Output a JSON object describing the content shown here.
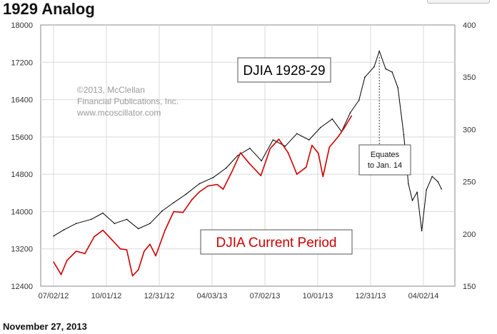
{
  "header": {
    "title": "1929 Analog",
    "date": "November 27, 2013"
  },
  "chart_data": {
    "type": "line",
    "x_ticks": [
      "07/02/12",
      "10/01/12",
      "12/31/12",
      "04/03/13",
      "07/02/13",
      "10/01/13",
      "12/31/13",
      "04/02/14"
    ],
    "left_axis": {
      "min": 12400,
      "max": 18000,
      "ticks": [
        "18000",
        "17200",
        "16400",
        "15600",
        "14800",
        "14000",
        "13200",
        "12400"
      ]
    },
    "right_axis": {
      "min": 150,
      "max": 400,
      "ticks": [
        "400",
        "350",
        "300",
        "250",
        "200",
        "150"
      ]
    },
    "grid": true,
    "series": [
      {
        "name": "DJIA 1928-29",
        "axis": "right",
        "color": "#000000",
        "x": [
          "2012-07-02",
          "2012-07-20",
          "2012-08-10",
          "2012-09-05",
          "2012-09-25",
          "2012-10-15",
          "2012-11-05",
          "2012-11-25",
          "2012-12-15",
          "2013-01-05",
          "2013-01-25",
          "2013-02-15",
          "2013-03-10",
          "2013-04-03",
          "2013-04-25",
          "2013-05-15",
          "2013-06-05",
          "2013-06-25",
          "2013-07-15",
          "2013-08-05",
          "2013-08-25",
          "2013-09-15",
          "2013-10-05",
          "2013-10-25",
          "2013-11-10",
          "2013-11-25",
          "2013-12-10",
          "2013-12-20",
          "2014-01-05",
          "2014-01-14",
          "2014-01-25",
          "2014-02-05",
          "2014-02-15",
          "2014-02-25",
          "2014-03-05",
          "2014-03-12",
          "2014-03-20",
          "2014-03-28",
          "2014-04-05",
          "2014-04-15",
          "2014-04-25",
          "2014-05-01"
        ],
        "values": [
          198,
          204,
          210,
          214,
          220,
          210,
          214,
          205,
          210,
          222,
          230,
          238,
          248,
          254,
          263,
          275,
          282,
          270,
          290,
          284,
          296,
          290,
          302,
          310,
          298,
          316,
          328,
          350,
          360,
          375,
          358,
          355,
          340,
          295,
          248,
          232,
          240,
          203,
          242,
          255,
          250,
          243
        ]
      },
      {
        "name": "DJIA Current Period",
        "axis": "left",
        "color": "#cc0000",
        "x": [
          "2012-07-02",
          "2012-07-15",
          "2012-07-25",
          "2012-08-10",
          "2012-08-25",
          "2012-09-10",
          "2012-09-25",
          "2012-10-10",
          "2012-10-25",
          "2012-11-05",
          "2012-11-15",
          "2012-11-25",
          "2012-12-05",
          "2012-12-15",
          "2012-12-25",
          "2013-01-10",
          "2013-01-25",
          "2013-02-10",
          "2013-02-25",
          "2013-03-10",
          "2013-03-25",
          "2013-04-10",
          "2013-04-20",
          "2013-05-05",
          "2013-05-20",
          "2013-06-05",
          "2013-06-24",
          "2013-07-10",
          "2013-07-25",
          "2013-08-10",
          "2013-08-25",
          "2013-09-10",
          "2013-09-20",
          "2013-10-01",
          "2013-10-09",
          "2013-10-20",
          "2013-11-05",
          "2013-11-15",
          "2013-11-27"
        ],
        "values": [
          12920,
          12650,
          12950,
          13150,
          13100,
          13460,
          13600,
          13400,
          13200,
          13180,
          12620,
          12750,
          13150,
          13300,
          13050,
          13600,
          14000,
          13980,
          14250,
          14420,
          14550,
          14580,
          14480,
          14850,
          15260,
          15020,
          14770,
          15350,
          15550,
          15260,
          14800,
          14950,
          15420,
          15250,
          14750,
          15380,
          15620,
          15800,
          16050
        ]
      }
    ],
    "annotations": [
      {
        "text_lines": [
          "Equates",
          "to Jan. 14"
        ],
        "target_date": "2014-01-14"
      }
    ],
    "watermark": [
      "©2013, McClellan",
      "Financial Publications, Inc.",
      "www.mcoscillator.com"
    ]
  }
}
